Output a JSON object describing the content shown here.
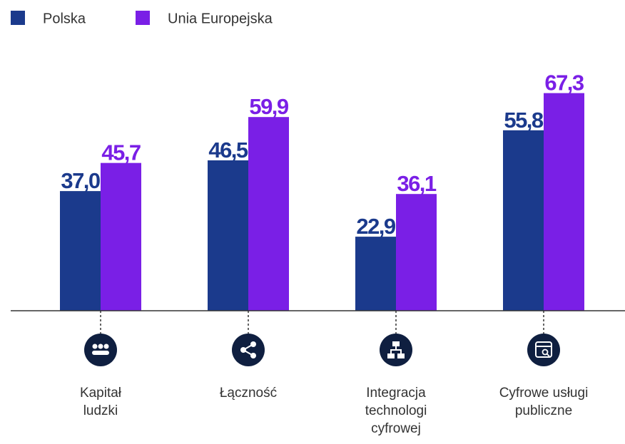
{
  "chart_data": {
    "type": "bar",
    "categories": [
      [
        "Kapitał",
        "ludzki"
      ],
      [
        "Łączność"
      ],
      [
        "Integracja",
        "technologi",
        "cyfrowej"
      ],
      [
        "Cyfrowe usługi",
        "publiczne"
      ]
    ],
    "series": [
      {
        "name": "Polska",
        "color": "#1b3a8c",
        "values": [
          37.0,
          46.5,
          22.9,
          55.8
        ],
        "value_labels": [
          "37,0",
          "46,5",
          "22,9",
          "55,8"
        ]
      },
      {
        "name": "Unia Europejska",
        "color": "#7a1fe6",
        "values": [
          45.7,
          59.9,
          36.1,
          67.3
        ],
        "value_labels": [
          "45,7",
          "59,9",
          "36,1",
          "67,3"
        ]
      }
    ],
    "ylim": [
      0,
      80
    ]
  }
}
